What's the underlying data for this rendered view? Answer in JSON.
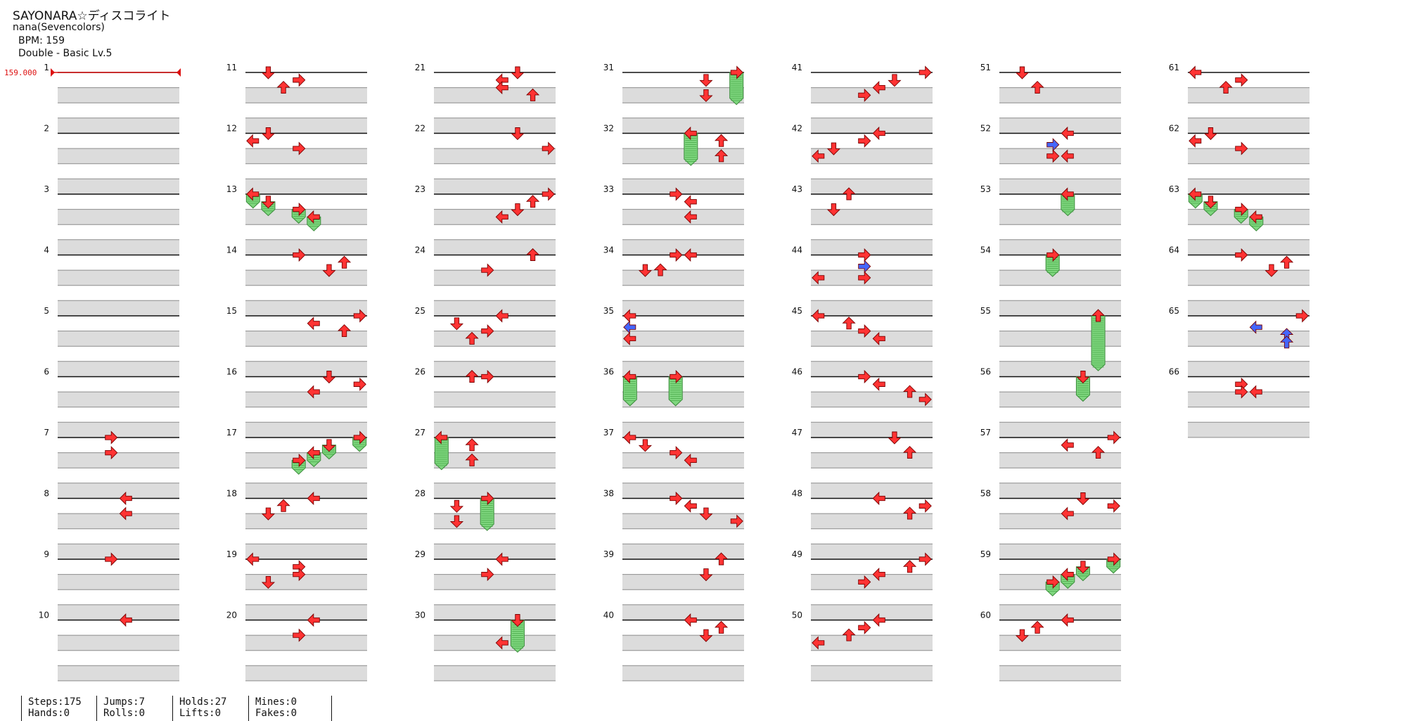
{
  "header": {
    "title": "SAYONARA☆ディスコライト",
    "artist": "nana(Sevencolors)",
    "bpm_label": "BPM: 159",
    "difficulty_label": "Double - Basic Lv.5"
  },
  "bpm_marker": "159.000",
  "measure_numbers": [
    "1",
    "2",
    "3",
    "4",
    "5",
    "6",
    "7",
    "8",
    "9",
    "10",
    "11",
    "12",
    "13",
    "14",
    "15",
    "16",
    "17",
    "18",
    "19",
    "20",
    "21",
    "22",
    "23",
    "24",
    "25",
    "26",
    "27",
    "28",
    "29",
    "30",
    "31",
    "32",
    "33",
    "34",
    "35",
    "36",
    "37",
    "38",
    "39",
    "40",
    "41",
    "42",
    "43",
    "44",
    "45",
    "46",
    "47",
    "48",
    "49",
    "50",
    "51",
    "52",
    "53",
    "54",
    "55",
    "56",
    "57",
    "58",
    "59",
    "60",
    "61",
    "62",
    "63",
    "64",
    "65",
    "66"
  ],
  "stats": [
    {
      "top": "Steps:175",
      "bottom": "Hands:0"
    },
    {
      "top": "Jumps:7",
      "bottom": "Rolls:0"
    },
    {
      "top": "Holds:27",
      "bottom": "Lifts:0"
    },
    {
      "top": "Mines:0",
      "bottom": "Fakes:0"
    }
  ],
  "colors": {
    "note": "#ff3333",
    "note_alt": "#4466ff",
    "hold": "#7ed67e",
    "stripe": "#dcdcdc",
    "bpm": "#dd1111"
  },
  "icons": [
    "arrow-left-icon",
    "arrow-down-icon",
    "arrow-up-icon",
    "arrow-right-icon",
    "hold-bar-icon"
  ],
  "notes": [
    {
      "m": 7,
      "b": 0,
      "c": 3
    },
    {
      "m": 7,
      "b": 1,
      "c": 3
    },
    {
      "m": 8,
      "b": 0,
      "c": 4
    },
    {
      "m": 8,
      "b": 1,
      "c": 4
    },
    {
      "m": 9,
      "b": 0,
      "c": 3
    },
    {
      "m": 10,
      "b": 0,
      "c": 4
    },
    {
      "m": 11,
      "b": 0,
      "c": 1
    },
    {
      "m": 11,
      "b": 0.5,
      "c": 3
    },
    {
      "m": 11,
      "b": 1,
      "c": 2
    },
    {
      "m": 12,
      "b": 0,
      "c": 1
    },
    {
      "m": 12,
      "b": 0.5,
      "c": 0
    },
    {
      "m": 12,
      "b": 1,
      "c": 3
    },
    {
      "m": 13,
      "b": 0,
      "c": 0,
      "h": 0.5
    },
    {
      "m": 13,
      "b": 0.5,
      "c": 1,
      "h": 0.5
    },
    {
      "m": 13,
      "b": 1,
      "c": 3,
      "h": 0.5
    },
    {
      "m": 13,
      "b": 1.5,
      "c": 4,
      "h": 0.5
    },
    {
      "m": 14,
      "b": 0,
      "c": 3
    },
    {
      "m": 14,
      "b": 0.5,
      "c": 6
    },
    {
      "m": 14,
      "b": 1,
      "c": 5
    },
    {
      "m": 15,
      "b": 0,
      "c": 7
    },
    {
      "m": 15,
      "b": 0.5,
      "c": 4
    },
    {
      "m": 15,
      "b": 1,
      "c": 6
    },
    {
      "m": 16,
      "b": 0,
      "c": 5
    },
    {
      "m": 16,
      "b": 0.5,
      "c": 7
    },
    {
      "m": 16,
      "b": 1,
      "c": 4
    },
    {
      "m": 17,
      "b": 0,
      "c": 7,
      "h": 0.5
    },
    {
      "m": 17,
      "b": 0.5,
      "c": 5,
      "h": 0.5
    },
    {
      "m": 17,
      "b": 1,
      "c": 4,
      "h": 0.5
    },
    {
      "m": 17,
      "b": 1.5,
      "c": 3,
      "h": 0.5
    },
    {
      "m": 18,
      "b": 0,
      "c": 4
    },
    {
      "m": 18,
      "b": 0.5,
      "c": 2
    },
    {
      "m": 18,
      "b": 1,
      "c": 1
    },
    {
      "m": 19,
      "b": 0,
      "c": 0
    },
    {
      "m": 19,
      "b": 0.5,
      "c": 3
    },
    {
      "m": 19,
      "b": 1,
      "c": 3
    },
    {
      "m": 19,
      "b": 1.5,
      "c": 1
    },
    {
      "m": 20,
      "b": 0,
      "c": 4
    },
    {
      "m": 20,
      "b": 1,
      "c": 3
    },
    {
      "m": 21,
      "b": 0,
      "c": 5
    },
    {
      "m": 21,
      "b": 0.5,
      "c": 4
    },
    {
      "m": 21,
      "b": 1,
      "c": 4
    },
    {
      "m": 21,
      "b": 1.5,
      "c": 6
    },
    {
      "m": 22,
      "b": 0,
      "c": 5
    },
    {
      "m": 22,
      "b": 1,
      "c": 7
    },
    {
      "m": 23,
      "b": 0,
      "c": 7
    },
    {
      "m": 23,
      "b": 0.5,
      "c": 6
    },
    {
      "m": 23,
      "b": 1,
      "c": 5
    },
    {
      "m": 23,
      "b": 1.5,
      "c": 4
    },
    {
      "m": 24,
      "b": 0,
      "c": 6
    },
    {
      "m": 24,
      "b": 1,
      "c": 3
    },
    {
      "m": 25,
      "b": 0,
      "c": 4
    },
    {
      "m": 25,
      "b": 0.5,
      "c": 1
    },
    {
      "m": 25,
      "b": 1,
      "c": 3
    },
    {
      "m": 25,
      "b": 1.5,
      "c": 2
    },
    {
      "m": 26,
      "b": 0,
      "c": 2
    },
    {
      "m": 26,
      "b": 0,
      "c": 3
    },
    {
      "m": 27,
      "b": 0,
      "c": 0,
      "h": 1.7
    },
    {
      "m": 27,
      "b": 0.5,
      "c": 2
    },
    {
      "m": 27,
      "b": 1.5,
      "c": 2
    },
    {
      "m": 28,
      "b": 0,
      "c": 3,
      "h": 1.7
    },
    {
      "m": 28,
      "b": 0.5,
      "c": 1
    },
    {
      "m": 28,
      "b": 1.5,
      "c": 1
    },
    {
      "m": 29,
      "b": 0,
      "c": 4
    },
    {
      "m": 29,
      "b": 1,
      "c": 3
    },
    {
      "m": 30,
      "b": 0,
      "c": 5,
      "h": 1.7
    },
    {
      "m": 30,
      "b": 1.5,
      "c": 4
    },
    {
      "m": 31,
      "b": 0,
      "c": 7,
      "h": 1.7
    },
    {
      "m": 31,
      "b": 0.5,
      "c": 5
    },
    {
      "m": 31,
      "b": 1.5,
      "c": 5
    },
    {
      "m": 32,
      "b": 0,
      "c": 4,
      "h": 1.7
    },
    {
      "m": 32,
      "b": 0.5,
      "c": 6
    },
    {
      "m": 32,
      "b": 1.5,
      "c": 6
    },
    {
      "m": 33,
      "b": 0,
      "c": 3
    },
    {
      "m": 33,
      "b": 0.5,
      "c": 4
    },
    {
      "m": 33,
      "b": 1.5,
      "c": 4
    },
    {
      "m": 34,
      "b": 0,
      "c": 3
    },
    {
      "m": 34,
      "b": 0,
      "c": 4
    },
    {
      "m": 34,
      "b": 1,
      "c": 1
    },
    {
      "m": 34,
      "b": 1,
      "c": 2
    },
    {
      "m": 35,
      "b": 0,
      "c": 0
    },
    {
      "m": 35,
      "b": 0.75,
      "c": 0,
      "blue": true
    },
    {
      "m": 35,
      "b": 1.5,
      "c": 0
    },
    {
      "m": 36,
      "b": 0,
      "c": 0,
      "h": 1.5
    },
    {
      "m": 36,
      "b": 0,
      "c": 3,
      "h": 1.5
    },
    {
      "m": 37,
      "b": 0,
      "c": 0
    },
    {
      "m": 37,
      "b": 0.5,
      "c": 1
    },
    {
      "m": 37,
      "b": 1,
      "c": 3
    },
    {
      "m": 37,
      "b": 1.5,
      "c": 4
    },
    {
      "m": 38,
      "b": 0,
      "c": 3
    },
    {
      "m": 38,
      "b": 0.5,
      "c": 4
    },
    {
      "m": 38,
      "b": 1,
      "c": 5
    },
    {
      "m": 38,
      "b": 1.5,
      "c": 7
    },
    {
      "m": 39,
      "b": 0,
      "c": 6
    },
    {
      "m": 39,
      "b": 1,
      "c": 5
    },
    {
      "m": 40,
      "b": 0,
      "c": 4
    },
    {
      "m": 40,
      "b": 0.5,
      "c": 6
    },
    {
      "m": 40,
      "b": 1,
      "c": 5
    },
    {
      "m": 41,
      "b": 0,
      "c": 7
    },
    {
      "m": 41,
      "b": 0.5,
      "c": 5
    },
    {
      "m": 41,
      "b": 1,
      "c": 4
    },
    {
      "m": 41,
      "b": 1.5,
      "c": 3
    },
    {
      "m": 42,
      "b": 0,
      "c": 4
    },
    {
      "m": 42,
      "b": 0.5,
      "c": 3
    },
    {
      "m": 42,
      "b": 1,
      "c": 1
    },
    {
      "m": 42,
      "b": 1.5,
      "c": 0
    },
    {
      "m": 43,
      "b": 0,
      "c": 2
    },
    {
      "m": 43,
      "b": 1,
      "c": 1
    },
    {
      "m": 44,
      "b": 0,
      "c": 3
    },
    {
      "m": 44,
      "b": 0.75,
      "c": 3,
      "blue": true
    },
    {
      "m": 44,
      "b": 1.5,
      "c": 0
    },
    {
      "m": 44,
      "b": 1.5,
      "c": 3
    },
    {
      "m": 45,
      "b": 0,
      "c": 0
    },
    {
      "m": 45,
      "b": 0.5,
      "c": 2
    },
    {
      "m": 45,
      "b": 1,
      "c": 3
    },
    {
      "m": 45,
      "b": 1.5,
      "c": 4
    },
    {
      "m": 46,
      "b": 0,
      "c": 3
    },
    {
      "m": 46,
      "b": 0.5,
      "c": 4
    },
    {
      "m": 46,
      "b": 1,
      "c": 6
    },
    {
      "m": 46,
      "b": 1.5,
      "c": 7
    },
    {
      "m": 47,
      "b": 0,
      "c": 5
    },
    {
      "m": 47,
      "b": 1,
      "c": 6
    },
    {
      "m": 48,
      "b": 0,
      "c": 4
    },
    {
      "m": 48,
      "b": 0.5,
      "c": 7
    },
    {
      "m": 48,
      "b": 1,
      "c": 6
    },
    {
      "m": 49,
      "b": 0,
      "c": 7
    },
    {
      "m": 49,
      "b": 0.5,
      "c": 6
    },
    {
      "m": 49,
      "b": 1,
      "c": 4
    },
    {
      "m": 49,
      "b": 1.5,
      "c": 3
    },
    {
      "m": 50,
      "b": 0,
      "c": 4
    },
    {
      "m": 50,
      "b": 0.5,
      "c": 3
    },
    {
      "m": 50,
      "b": 1,
      "c": 2
    },
    {
      "m": 50,
      "b": 1.5,
      "c": 0
    },
    {
      "m": 51,
      "b": 0,
      "c": 1
    },
    {
      "m": 51,
      "b": 1,
      "c": 2
    },
    {
      "m": 52,
      "b": 0,
      "c": 4
    },
    {
      "m": 52,
      "b": 0.75,
      "c": 3,
      "blue": true
    },
    {
      "m": 52,
      "b": 1.5,
      "c": 3
    },
    {
      "m": 52,
      "b": 1.5,
      "c": 4
    },
    {
      "m": 53,
      "b": 0,
      "c": 4,
      "h": 1
    },
    {
      "m": 54,
      "b": 0,
      "c": 3,
      "h": 1
    },
    {
      "m": 55,
      "b": 0,
      "c": 6,
      "h": 3.2
    },
    {
      "m": 56,
      "b": 0,
      "c": 5,
      "h": 1.2
    },
    {
      "m": 57,
      "b": 0,
      "c": 7
    },
    {
      "m": 57,
      "b": 0.5,
      "c": 4
    },
    {
      "m": 57,
      "b": 1,
      "c": 6
    },
    {
      "m": 58,
      "b": 0,
      "c": 5
    },
    {
      "m": 58,
      "b": 0.5,
      "c": 7
    },
    {
      "m": 58,
      "b": 1,
      "c": 4
    },
    {
      "m": 59,
      "b": 0,
      "c": 7,
      "h": 0.5
    },
    {
      "m": 59,
      "b": 0.5,
      "c": 5,
      "h": 0.5
    },
    {
      "m": 59,
      "b": 1,
      "c": 4,
      "h": 0.5
    },
    {
      "m": 59,
      "b": 1.5,
      "c": 3,
      "h": 0.5
    },
    {
      "m": 60,
      "b": 0,
      "c": 4
    },
    {
      "m": 60,
      "b": 0.5,
      "c": 2
    },
    {
      "m": 60,
      "b": 1,
      "c": 1
    },
    {
      "m": 61,
      "b": 0,
      "c": 0
    },
    {
      "m": 61,
      "b": 0.5,
      "c": 3
    },
    {
      "m": 61,
      "b": 1,
      "c": 2
    },
    {
      "m": 62,
      "b": 0,
      "c": 1
    },
    {
      "m": 62,
      "b": 0.5,
      "c": 0
    },
    {
      "m": 62,
      "b": 1,
      "c": 3
    },
    {
      "m": 63,
      "b": 0,
      "c": 0,
      "h": 0.5
    },
    {
      "m": 63,
      "b": 0.5,
      "c": 1,
      "h": 0.5
    },
    {
      "m": 63,
      "b": 1,
      "c": 3,
      "h": 0.5
    },
    {
      "m": 63,
      "b": 1.5,
      "c": 4,
      "h": 0.5
    },
    {
      "m": 64,
      "b": 0,
      "c": 3
    },
    {
      "m": 64,
      "b": 0.5,
      "c": 6
    },
    {
      "m": 64,
      "b": 1,
      "c": 5
    },
    {
      "m": 65,
      "b": 0,
      "c": 7
    },
    {
      "m": 65,
      "b": 0.75,
      "c": 4,
      "blue": true
    },
    {
      "m": 65,
      "b": 1.25,
      "c": 6,
      "blue": true
    },
    {
      "m": 65,
      "b": 1.75,
      "c": 6,
      "blue": true
    },
    {
      "m": 66,
      "b": 0.5,
      "c": 3
    },
    {
      "m": 66,
      "b": 1,
      "c": 3
    },
    {
      "m": 66,
      "b": 1,
      "c": 4
    }
  ]
}
